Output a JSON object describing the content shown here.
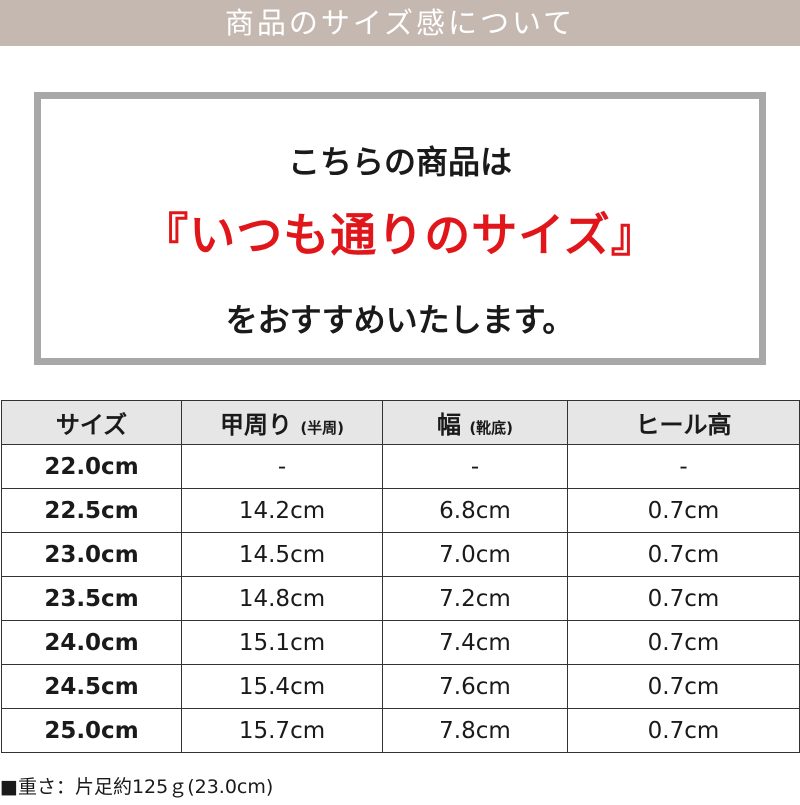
{
  "banner": {
    "title": "商品のサイズ感について"
  },
  "recommend": {
    "line1": "こちらの商品は",
    "line2": "『いつも通りのサイズ』",
    "line3": "をおすすめいたします。"
  },
  "table": {
    "headers": [
      {
        "main": "サイズ",
        "sub": ""
      },
      {
        "main": "甲周り",
        "sub": "(半周)"
      },
      {
        "main": "幅",
        "sub": "(靴底)"
      },
      {
        "main": "ヒール高",
        "sub": ""
      }
    ],
    "rows": [
      [
        "22.0cm",
        "-",
        "-",
        "-"
      ],
      [
        "22.5cm",
        "14.2cm",
        "6.8cm",
        "0.7cm"
      ],
      [
        "23.0cm",
        "14.5cm",
        "7.0cm",
        "0.7cm"
      ],
      [
        "23.5cm",
        "14.8cm",
        "7.2cm",
        "0.7cm"
      ],
      [
        "24.0cm",
        "15.1cm",
        "7.4cm",
        "0.7cm"
      ],
      [
        "24.5cm",
        "15.4cm",
        "7.6cm",
        "0.7cm"
      ],
      [
        "25.0cm",
        "15.7cm",
        "7.8cm",
        "0.7cm"
      ]
    ]
  },
  "note": "■重さ：片足約125ｇ(23.0cm)",
  "colors": {
    "banner": "#c4b8b1",
    "accent": "#e0161a",
    "border": "#a8a8a8"
  }
}
